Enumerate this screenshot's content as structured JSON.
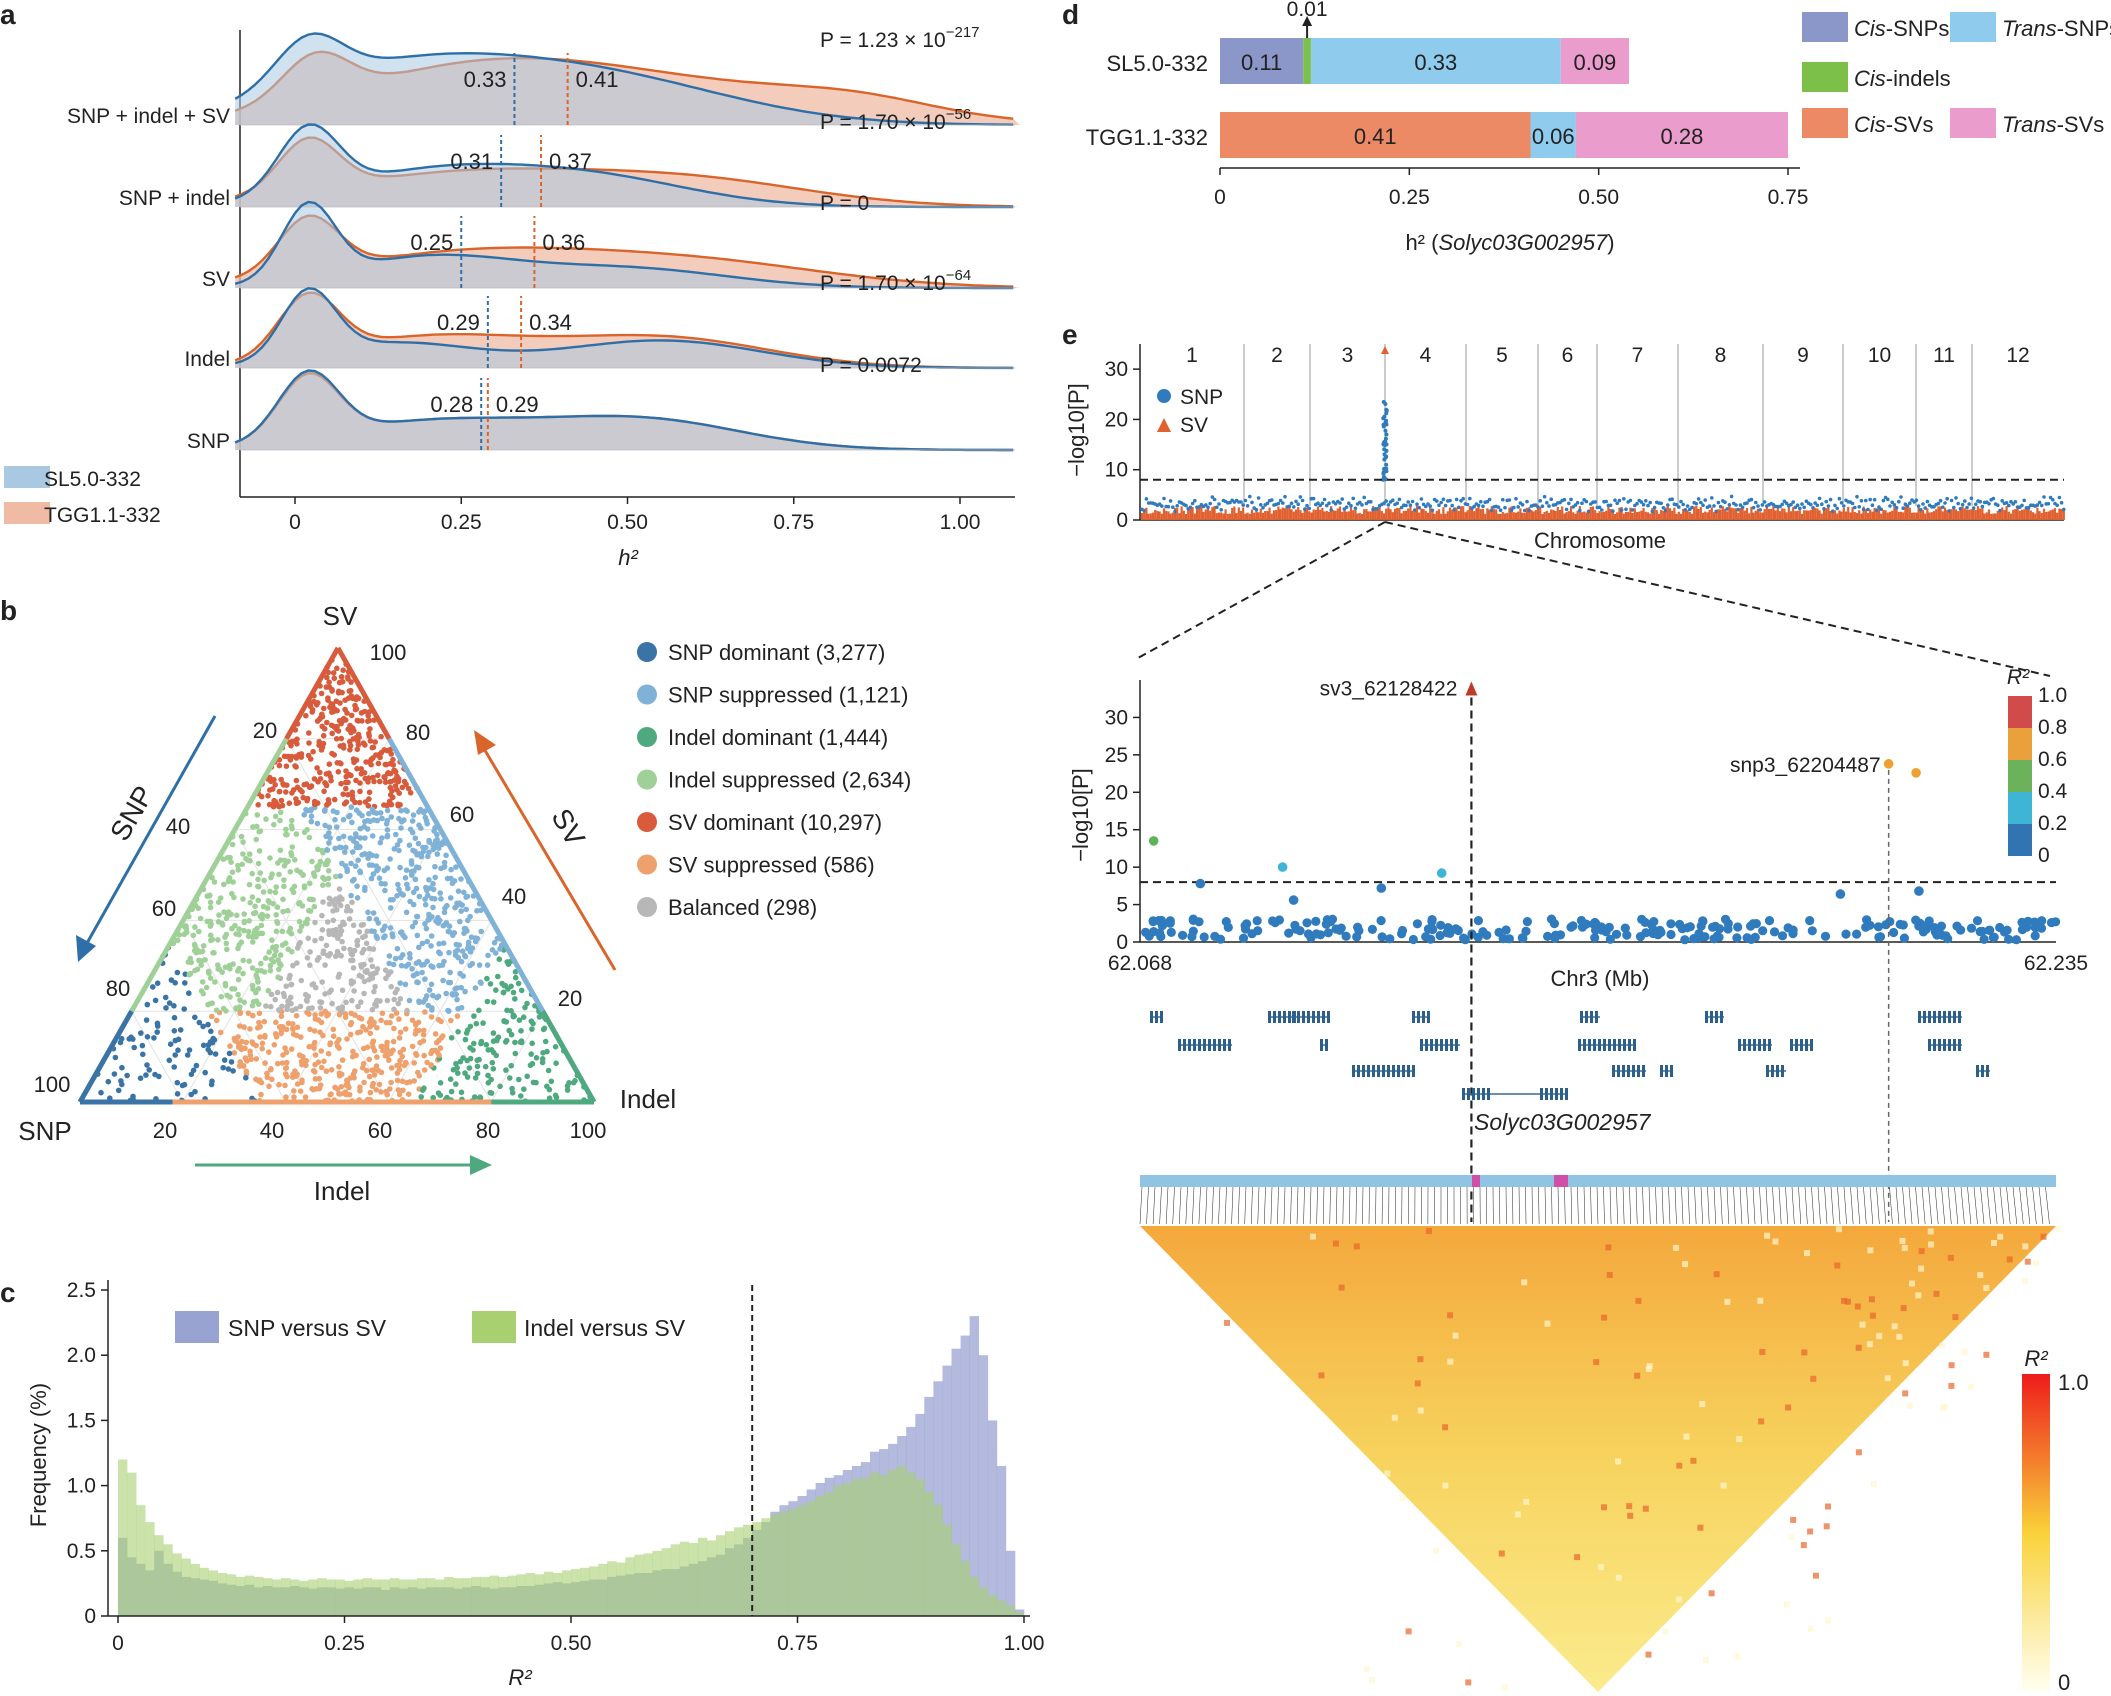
{
  "colors": {
    "sl": "#2e6fa8",
    "sl_fill": "#a9c8e2",
    "tgg": "#d9652b",
    "tgg_fill": "#f0bba5",
    "snp_dom": "#3a74a7",
    "snp_sup": "#7fb2d6",
    "indel_dom": "#4fa97f",
    "indel_sup": "#9fd098",
    "sv_dom": "#d85b3c",
    "sv_sup": "#eea16c",
    "balanced": "#b7b7b7",
    "cis_snp": "#8b97c8",
    "trans_snp": "#8ecbed",
    "cis_indel": "#7cc04a",
    "cis_sv": "#ec8a66",
    "trans_sv": "#ea9ccc",
    "hist_snp": "#99a3d1",
    "hist_indel": "#a8d071",
    "gwas_snp": "#2f7bbd",
    "gwas_sv": "#e0602f",
    "gene_name": "#d8232a"
  },
  "chart_data": [
    {
      "panel": "a",
      "type": "area",
      "xlabel": "h²",
      "xticks": [
        "0",
        "0.25",
        "0.50",
        "0.75",
        "1.00"
      ],
      "xlim": [
        -0.09,
        1.09
      ],
      "legend": [
        "SL5.0-332",
        "TGG1.1-332"
      ],
      "rows": [
        {
          "name": "SNP + indel + SV",
          "sl_mean": 0.33,
          "tgg_mean": 0.41,
          "sl_label": "0.33",
          "tgg_label": "0.41",
          "p": "P = 1.23 × 10",
          "p_exp": "−217"
        },
        {
          "name": "SNP + indel",
          "sl_mean": 0.31,
          "tgg_mean": 0.37,
          "sl_label": "0.31",
          "tgg_label": "0.37",
          "p": "P = 1.70 × 10",
          "p_exp": "−56"
        },
        {
          "name": "SV",
          "sl_mean": 0.25,
          "tgg_mean": 0.36,
          "sl_label": "0.25",
          "tgg_label": "0.36",
          "p": "P = 0",
          "p_exp": ""
        },
        {
          "name": "Indel",
          "sl_mean": 0.29,
          "tgg_mean": 0.34,
          "sl_label": "0.29",
          "tgg_label": "0.34",
          "p": "P = 1.70 × 10",
          "p_exp": "−64"
        },
        {
          "name": "SNP",
          "sl_mean": 0.28,
          "tgg_mean": 0.29,
          "sl_label": "0.28",
          "tgg_label": "0.29",
          "p": "P = 0.0072",
          "p_exp": ""
        }
      ]
    },
    {
      "panel": "b",
      "type": "scatter",
      "vertex_labels": {
        "top": "SV",
        "left": "SNP",
        "right": "Indel"
      },
      "axis_arrows": {
        "left": "SNP",
        "right": "SV",
        "bottom": "Indel"
      },
      "ticks_bottom": [
        "20",
        "40",
        "60",
        "80",
        "100"
      ],
      "ticks_left": [
        "20",
        "40",
        "60",
        "80",
        "100"
      ],
      "ticks_right": [
        "100",
        "80",
        "60",
        "40",
        "20"
      ],
      "categories": [
        {
          "key": "snp_dom",
          "label": "SNP dominant (3,277)"
        },
        {
          "key": "snp_sup",
          "label": "SNP suppressed (1,121)"
        },
        {
          "key": "indel_dom",
          "label": "Indel dominant (1,444)"
        },
        {
          "key": "indel_sup",
          "label": "Indel suppressed (2,634)"
        },
        {
          "key": "sv_dom",
          "label": "SV dominant (10,297)"
        },
        {
          "key": "sv_sup",
          "label": "SV suppressed (586)"
        },
        {
          "key": "balanced",
          "label": "Balanced (298)"
        }
      ]
    },
    {
      "panel": "c",
      "type": "bar",
      "xlabel": "R²",
      "ylabel": "Frequency (%)",
      "xticks": [
        "0",
        "0.25",
        "0.50",
        "0.75",
        "1.00"
      ],
      "yticks": [
        "0",
        "0.5",
        "1.0",
        "1.5",
        "2.0",
        "2.5"
      ],
      "xlim": [
        0,
        1.0
      ],
      "ylim": [
        0,
        2.5
      ],
      "threshold": 0.7,
      "series": [
        {
          "name": "SNP versus SV",
          "values": [
            0.6,
            0.45,
            0.4,
            0.35,
            0.5,
            0.4,
            0.34,
            0.3,
            0.29,
            0.28,
            0.27,
            0.25,
            0.24,
            0.23,
            0.24,
            0.22,
            0.23,
            0.22,
            0.22,
            0.23,
            0.22,
            0.21,
            0.22,
            0.22,
            0.21,
            0.22,
            0.21,
            0.22,
            0.22,
            0.2,
            0.22,
            0.21,
            0.22,
            0.21,
            0.22,
            0.22,
            0.22,
            0.21,
            0.22,
            0.23,
            0.22,
            0.21,
            0.22,
            0.22,
            0.23,
            0.23,
            0.24,
            0.25,
            0.26,
            0.25,
            0.26,
            0.27,
            0.28,
            0.28,
            0.3,
            0.31,
            0.32,
            0.33,
            0.33,
            0.35,
            0.36,
            0.36,
            0.38,
            0.4,
            0.42,
            0.45,
            0.47,
            0.52,
            0.55,
            0.6,
            0.66,
            0.72,
            0.8,
            0.85,
            0.88,
            0.92,
            0.97,
            1.02,
            1.06,
            1.08,
            1.12,
            1.15,
            1.18,
            1.26,
            1.28,
            1.32,
            1.38,
            1.45,
            1.55,
            1.68,
            1.8,
            1.92,
            2.05,
            2.15,
            2.3,
            2.0,
            1.5,
            1.15,
            0.5,
            0.05
          ]
        },
        {
          "name": "Indel versus SV",
          "values": [
            1.2,
            1.1,
            0.85,
            0.72,
            0.62,
            0.55,
            0.48,
            0.44,
            0.4,
            0.37,
            0.35,
            0.33,
            0.32,
            0.3,
            0.31,
            0.3,
            0.29,
            0.28,
            0.29,
            0.28,
            0.27,
            0.28,
            0.29,
            0.28,
            0.28,
            0.27,
            0.28,
            0.29,
            0.28,
            0.28,
            0.29,
            0.28,
            0.28,
            0.29,
            0.29,
            0.28,
            0.3,
            0.29,
            0.29,
            0.3,
            0.3,
            0.31,
            0.3,
            0.31,
            0.32,
            0.33,
            0.32,
            0.34,
            0.33,
            0.35,
            0.36,
            0.37,
            0.38,
            0.4,
            0.42,
            0.41,
            0.45,
            0.47,
            0.48,
            0.5,
            0.52,
            0.55,
            0.57,
            0.56,
            0.6,
            0.58,
            0.62,
            0.65,
            0.68,
            0.7,
            0.72,
            0.75,
            0.78,
            0.8,
            0.82,
            0.85,
            0.88,
            0.92,
            0.95,
            1.0,
            1.02,
            1.05,
            1.06,
            1.1,
            1.08,
            1.12,
            1.15,
            1.1,
            1.05,
            0.95,
            0.85,
            0.7,
            0.55,
            0.42,
            0.3,
            0.22,
            0.16,
            0.12,
            0.08,
            0.03
          ]
        }
      ]
    },
    {
      "panel": "d",
      "type": "bar",
      "xlabel_prefix": "h² (",
      "xlabel_gene": "Solyc03G002957",
      "xlabel_suffix": ")",
      "xticks": [
        "0",
        "0.25",
        "0.50",
        "0.75"
      ],
      "xlim": [
        0,
        0.75
      ],
      "rows": [
        {
          "name": "SL5.0-332",
          "segments": [
            {
              "key": "cis_snp",
              "value": 0.11,
              "label": "0.11"
            },
            {
              "key": "cis_indel",
              "value": 0.01,
              "label": ""
            },
            {
              "key": "trans_snp",
              "value": 0.33,
              "label": "0.33"
            },
            {
              "key": "trans_sv",
              "value": 0.09,
              "label": "0.09"
            }
          ]
        },
        {
          "name": "TGG1.1-332",
          "segments": [
            {
              "key": "cis_sv",
              "value": 0.41,
              "label": "0.41"
            },
            {
              "key": "trans_snp",
              "value": 0.06,
              "label": "0.06"
            },
            {
              "key": "trans_sv",
              "value": 0.28,
              "label": "0.28"
            }
          ]
        }
      ],
      "callout": "0.01",
      "legend": [
        {
          "key": "cis_snp",
          "italic": "Cis",
          "rest": "-SNPs"
        },
        {
          "key": "trans_snp",
          "italic": "Trans",
          "rest": "-SNPs"
        },
        {
          "key": "cis_indel",
          "italic": "Cis",
          "rest": "-indels"
        },
        {
          "key": "cis_sv",
          "italic": "Cis",
          "rest": "-SVs"
        },
        {
          "key": "trans_sv",
          "italic": "Trans",
          "rest": "-SVs"
        }
      ]
    },
    {
      "panel": "e",
      "type": "scatter",
      "manhattan": {
        "xlabel": "Chromosome",
        "ylabel": "−log10[P]",
        "yticks": [
          "0",
          "10",
          "20",
          "30"
        ],
        "ylim": [
          0,
          35
        ],
        "threshold": 8,
        "chromosomes": [
          "1",
          "2",
          "3",
          "4",
          "5",
          "6",
          "7",
          "8",
          "9",
          "10",
          "11",
          "12"
        ],
        "legend": [
          "SNP",
          "SV"
        ],
        "peak": 24
      },
      "locus": {
        "xlabel": "Chr3 (Mb)",
        "xstart": "62.068",
        "xend": "62.235",
        "xlim": [
          62.068,
          62.235
        ],
        "ylabel": "−log10[P]",
        "yticks": [
          "0",
          "5",
          "10",
          "15",
          "20",
          "25",
          "30"
        ],
        "ylim": [
          0,
          35
        ],
        "threshold": 8,
        "lead_sv": {
          "name": "sv3_62128422",
          "pos": 62.12842,
          "logp": 34
        },
        "lead_snp": {
          "name": "snp3_62204487",
          "pos": 62.20449,
          "logp": 23.8
        },
        "r2_legend_title": "R²",
        "r2_ticks": [
          "1.0",
          "0.8",
          "0.6",
          "0.4",
          "0.2",
          "0"
        ],
        "gene": "Solyc03G002957"
      },
      "ld": {
        "legend_title": "R²",
        "max": "1.0",
        "min": "0"
      }
    }
  ],
  "panel_labels": [
    "a",
    "b",
    "c",
    "d",
    "e"
  ]
}
